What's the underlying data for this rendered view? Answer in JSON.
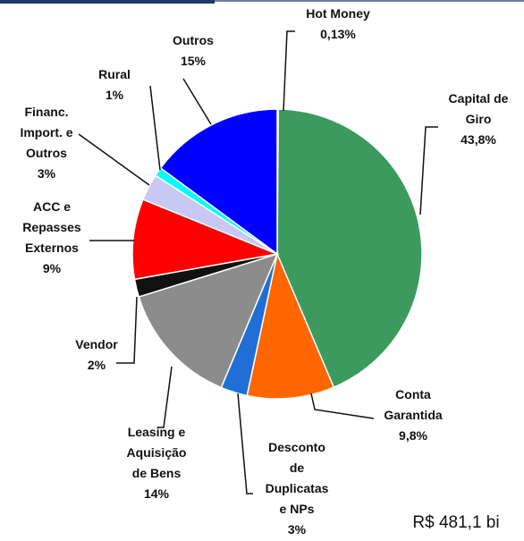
{
  "chart_data": {
    "type": "pie",
    "categories": [
      "Hot Money",
      "Capital de\nGiro",
      "Conta\nGarantida",
      "Desconto\nde\nDuplicatas\ne NPs",
      "Leasing e\nAquisição\nde Bens",
      "Vendor",
      "ACC e\nRepasses\nExternos",
      "Financ.\nImport. e\nOutros",
      "Rural",
      "Outros"
    ],
    "values": [
      0.13,
      43.8,
      9.8,
      3,
      14,
      2,
      9,
      3,
      1,
      15
    ],
    "value_labels": [
      "0,13%",
      "43,8%",
      "9,8%",
      "3%",
      "14%",
      "2%",
      "9%",
      "3%",
      "1%",
      "15%"
    ],
    "colors": [
      "#ffc000",
      "#3c9a5f",
      "#ff6600",
      "#1f6fd6",
      "#8c8c8c",
      "#111111",
      "#ff0000",
      "#c8c8f2",
      "#00ffff",
      "#0000ff"
    ],
    "annotation": "R$ 481,1 bi"
  }
}
